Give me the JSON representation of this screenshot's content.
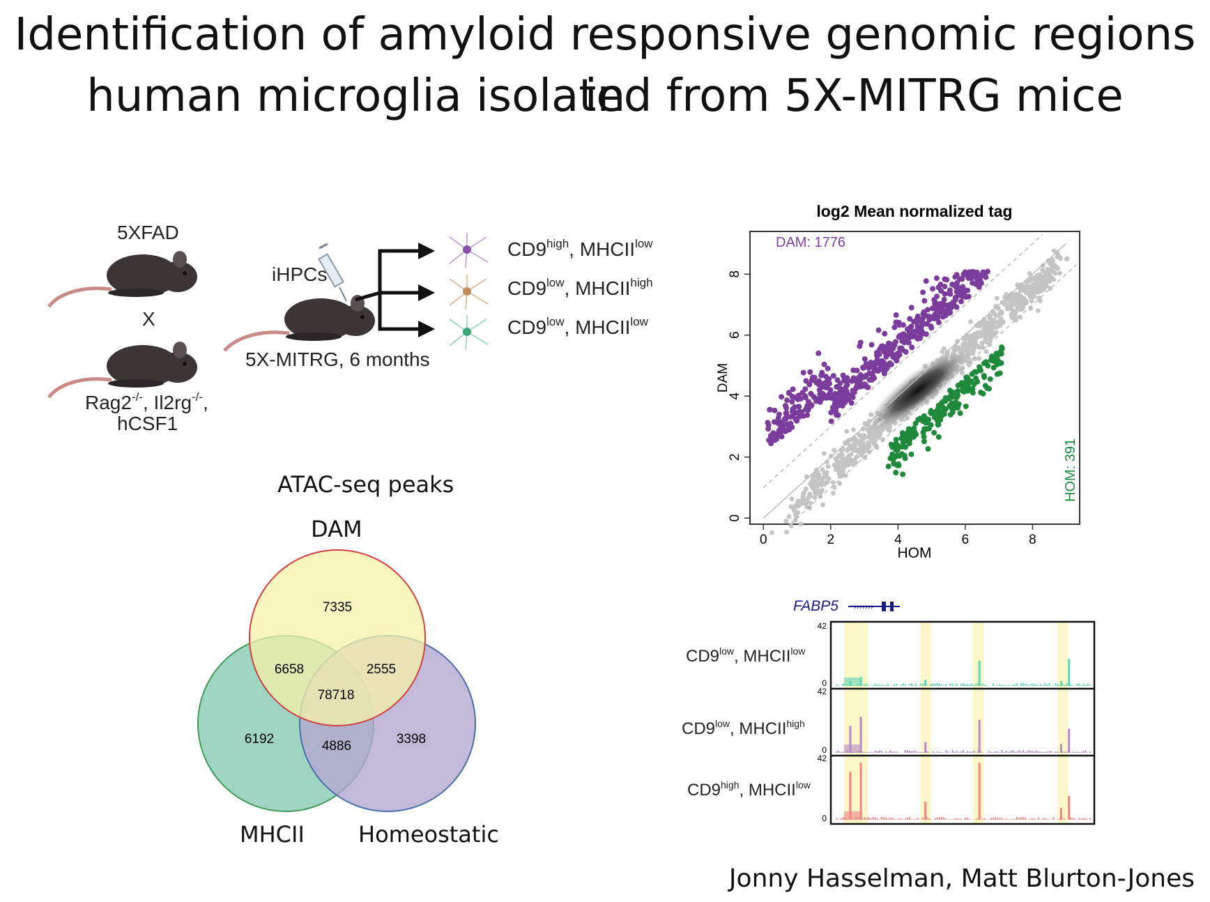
{
  "slide": {
    "title_line1": "Identification of amyloid responsive genomic regions in",
    "title_line2": "human microglia isolated from 5X-MITRG mice",
    "authors": "Jonny Hasselman, Matt Blurton-Jones"
  },
  "schematic": {
    "strain_top": "5XFAD",
    "cross": "X",
    "strain_bottom_line1": "Rag2-/-, Il2rg-/-,",
    "strain_bottom_line2": "hCSF1",
    "injection_label": "iHPCs",
    "model_label": "5X-MITRG, 6 months",
    "populations": [
      {
        "cd9": "CD9",
        "cd9_sup": "high",
        "mhc": "MHCII",
        "mhc_sup": "low",
        "color": "#8a4fa8"
      },
      {
        "cd9": "CD9",
        "cd9_sup": "low",
        "mhc": "MHCII",
        "mhc_sup": "high",
        "color": "#c08a5a"
      },
      {
        "cd9": "CD9",
        "cd9_sup": "low",
        "mhc": "MHCII",
        "mhc_sup": "low",
        "color": "#3aa67a"
      }
    ]
  },
  "venn": {
    "heading": "ATAC-seq peaks",
    "set_labels": {
      "top": "DAM",
      "left": "MHCII",
      "right": "Homeostatic"
    },
    "regions": {
      "dam_only": "7335",
      "dam_mhc": "6658",
      "dam_hom": "2555",
      "all": "78718",
      "mhc_only": "6192",
      "mhc_hom": "4886",
      "hom_only": "3398"
    },
    "colors": {
      "dam": "#f6f2a8",
      "mhc": "#8fcdb8",
      "hom": "#b4a8cf"
    }
  },
  "chart_data": [
    {
      "type": "scatter",
      "title": "log2 Mean normalized tag",
      "xlabel": "HOM",
      "ylabel": "DAM",
      "xlim": [
        -0.4,
        9.4
      ],
      "ylim": [
        -0.2,
        9.4
      ],
      "xticks": [
        0,
        2,
        4,
        6,
        8
      ],
      "yticks": [
        0,
        2,
        4,
        6,
        8
      ],
      "annotations": [
        {
          "text": "DAM: 1776",
          "color": "#7b3d9c"
        },
        {
          "text": "HOM: 391",
          "color": "#1f8a3b"
        }
      ],
      "series": [
        {
          "name": "DAM",
          "count": 1776,
          "color": "#7b3d9c"
        },
        {
          "name": "HOM",
          "count": 391,
          "color": "#1f8a3b"
        }
      ]
    },
    {
      "type": "area",
      "gene": "FABP5",
      "ymax_label": "42",
      "ymin_label": "0",
      "tracks": [
        {
          "cd9": "CD9",
          "cd9_sup": "low",
          "mhc": "MHCII",
          "mhc_sup": "low",
          "color": "#5fd6b6"
        },
        {
          "cd9": "CD9",
          "cd9_sup": "low",
          "mhc": "MHCII",
          "mhc_sup": "high",
          "color": "#b58ac7"
        },
        {
          "cd9": "CD9",
          "cd9_sup": "high",
          "mhc": "MHCII",
          "mhc_sup": "low",
          "color": "#f08585"
        }
      ],
      "highlight_color": "#fbf7c8"
    }
  ]
}
